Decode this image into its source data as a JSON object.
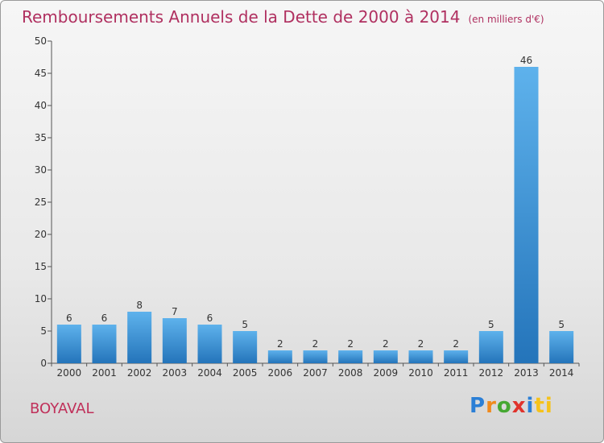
{
  "title": "Remboursements Annuels de la Dette de 2000 à 2014",
  "subtitle": "(en milliers d'€)",
  "commune": "BOYAVAL",
  "logo": [
    "P",
    "r",
    "o",
    "x",
    "i",
    "ti"
  ],
  "chart_data": {
    "type": "bar",
    "title": "Remboursements Annuels de la Dette de 2000 à 2014",
    "subtitle": "(en milliers d'€)",
    "xlabel": "",
    "ylabel": "",
    "categories": [
      "2000",
      "2001",
      "2002",
      "2003",
      "2004",
      "2005",
      "2006",
      "2007",
      "2008",
      "2009",
      "2010",
      "2011",
      "2012",
      "2013",
      "2014"
    ],
    "values": [
      6,
      6,
      8,
      7,
      6,
      5,
      2,
      2,
      2,
      2,
      2,
      2,
      5,
      46,
      5
    ],
    "ylim": [
      0,
      50
    ],
    "yticks": [
      0,
      5,
      10,
      15,
      20,
      25,
      30,
      35,
      40,
      45,
      50
    ],
    "grid": false,
    "colors": {
      "bar": "#3c96dc",
      "bar_dark": "#2474ba",
      "title": "#b03060"
    }
  }
}
